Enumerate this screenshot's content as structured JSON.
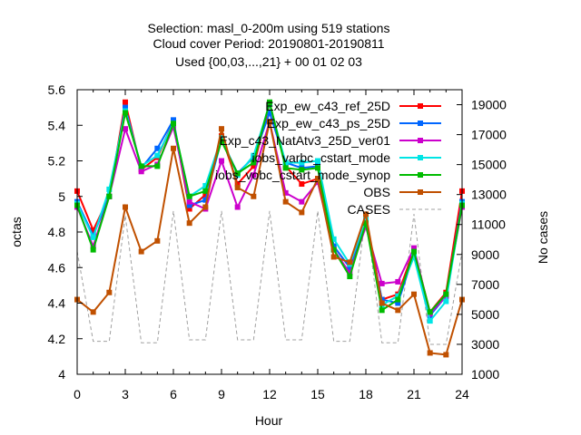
{
  "chart_data": {
    "type": "line",
    "title": [
      "Selection: masl_0-200m using   519 stations",
      "Cloud cover   Period: 20190801-20190811",
      "Used {00,03,...,21} + 00 01 02 03"
    ],
    "xlabel": "Hour",
    "ylabel": "octas",
    "y2label": "No cases",
    "xlim": [
      0,
      24
    ],
    "ylim": [
      4,
      5.6
    ],
    "y2lim": [
      1000,
      20000
    ],
    "x_ticks": [
      "0",
      "3",
      "6",
      "9",
      "12",
      "15",
      "18",
      "21",
      "24"
    ],
    "y_ticks": [
      "4",
      "4.2",
      "4.4",
      "4.6",
      "4.8",
      "5",
      "5.2",
      "5.4",
      "5.6"
    ],
    "y2_ticks": [
      "1000",
      "3000",
      "5000",
      "7000",
      "9000",
      "11000",
      "13000",
      "15000",
      "17000",
      "19000"
    ],
    "grid": false,
    "legend_position": "top-right",
    "x": [
      0,
      1,
      2,
      3,
      4,
      5,
      6,
      7,
      8,
      9,
      10,
      11,
      12,
      13,
      14,
      15,
      16,
      17,
      18,
      19,
      20,
      21,
      22,
      23,
      24
    ],
    "series": [
      {
        "name": "Exp_ew_c43_ref_25D",
        "color": "#ff0000",
        "values": [
          5.03,
          4.81,
          5.0,
          5.53,
          5.15,
          5.22,
          5.42,
          4.93,
          5.01,
          5.34,
          5.07,
          5.17,
          5.52,
          5.17,
          5.07,
          5.1,
          4.72,
          4.6,
          4.85,
          4.42,
          4.45,
          4.7,
          4.35,
          4.46,
          5.03
        ]
      },
      {
        "name": "Exp_ew_c43_ps_25D",
        "color": "#0066ff",
        "values": [
          4.97,
          4.78,
          5.0,
          5.5,
          5.16,
          5.27,
          5.43,
          4.95,
          4.98,
          5.32,
          5.13,
          5.22,
          5.47,
          5.19,
          5.16,
          5.17,
          4.72,
          4.6,
          4.87,
          4.42,
          4.4,
          4.68,
          4.33,
          4.44,
          4.97
        ]
      },
      {
        "name": "Exp_c43_NatAtv3_25D_ver01",
        "color": "#cc00cc",
        "values": [
          4.94,
          4.72,
          5.0,
          5.38,
          5.14,
          5.18,
          5.39,
          4.97,
          4.93,
          5.2,
          4.94,
          5.12,
          5.42,
          5.02,
          4.97,
          5.08,
          4.7,
          4.57,
          4.83,
          4.51,
          4.52,
          4.71,
          4.34,
          4.44,
          4.94
        ]
      },
      {
        "name": "iobs_varbc_cstart_mode",
        "color": "#00e5e5",
        "values": [
          4.96,
          4.77,
          5.04,
          5.48,
          5.17,
          5.23,
          5.41,
          5.0,
          5.06,
          5.33,
          5.12,
          5.23,
          5.52,
          5.19,
          5.19,
          5.2,
          4.76,
          4.62,
          4.87,
          4.39,
          4.44,
          4.66,
          4.3,
          4.41,
          4.96
        ]
      },
      {
        "name": "iobs_vobc_cstart_mode_synop",
        "color": "#00bb00",
        "values": [
          4.95,
          4.7,
          5.0,
          5.47,
          5.17,
          5.17,
          5.41,
          5.0,
          5.03,
          5.31,
          5.13,
          5.19,
          5.53,
          5.16,
          5.15,
          5.16,
          4.7,
          4.55,
          4.85,
          4.36,
          4.42,
          4.69,
          4.35,
          4.45,
          4.95
        ]
      },
      {
        "name": "OBS",
        "color": "#c05000",
        "values": [
          4.42,
          4.35,
          4.46,
          4.94,
          4.69,
          4.75,
          5.27,
          4.85,
          4.94,
          5.38,
          5.05,
          5.0,
          5.42,
          4.97,
          4.91,
          5.1,
          4.66,
          4.63,
          4.9,
          4.4,
          4.36,
          4.45,
          4.12,
          4.11,
          4.42
        ]
      },
      {
        "name": "CASES",
        "color": "#a0a0a0",
        "axis": "y2",
        "values": [
          9200,
          3200,
          3200,
          11600,
          3100,
          3100,
          11900,
          3300,
          3300,
          11900,
          3300,
          3300,
          11900,
          3300,
          3300,
          11900,
          3200,
          3200,
          11800,
          3100,
          3100,
          11700,
          3000,
          3000,
          9200
        ]
      }
    ]
  }
}
